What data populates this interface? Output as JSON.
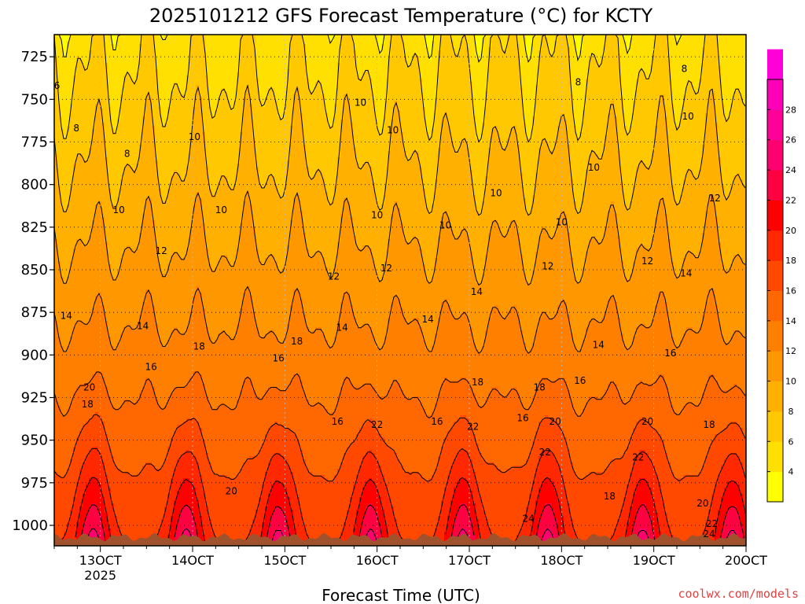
{
  "title": "2025101212 GFS Forecast Temperature (°C) for KCTY",
  "xlabel": "Forecast Time (UTC)",
  "credit": "coolwx.com/models",
  "colors": {
    "ground": "#a0522d",
    "bands": [
      "#ffff00",
      "#ffe000",
      "#ffc800",
      "#ffb000",
      "#ff9800",
      "#ff8000",
      "#ff6800",
      "#ff4800",
      "#ff2800",
      "#ff0000",
      "#ff0040",
      "#ff0070",
      "#ff0098",
      "#ff00b8",
      "#ff00d8"
    ]
  },
  "chart_data": {
    "type": "heatmap",
    "title": "2025101212 GFS Forecast Temperature (°C) for KCTY",
    "xlabel": "Forecast Time (UTC)",
    "ylabel": "",
    "y_axis": "pressure (hPa), inverted",
    "ylim": [
      1012,
      712
    ],
    "yticks": [
      725,
      750,
      775,
      800,
      825,
      850,
      875,
      900,
      925,
      950,
      975,
      1000
    ],
    "xticks": [
      {
        "label": "13OCT",
        "sub": "2025"
      },
      {
        "label": "14OCT",
        "sub": ""
      },
      {
        "label": "15OCT",
        "sub": ""
      },
      {
        "label": "16OCT",
        "sub": ""
      },
      {
        "label": "17OCT",
        "sub": ""
      },
      {
        "label": "18OCT",
        "sub": ""
      },
      {
        "label": "19OCT",
        "sub": ""
      },
      {
        "label": "20OCT",
        "sub": ""
      }
    ],
    "xlim_days": [
      12.5,
      20.0
    ],
    "colorbar": {
      "levels": [
        4,
        6,
        8,
        10,
        12,
        14,
        16,
        18,
        20,
        22,
        24,
        26,
        28
      ],
      "min": 2,
      "max": 30
    },
    "contour_labels": [
      {
        "text": "6",
        "day": 12.53,
        "p": 742
      },
      {
        "text": "8",
        "day": 12.74,
        "p": 767
      },
      {
        "text": "8",
        "day": 13.29,
        "p": 782
      },
      {
        "text": "10",
        "day": 13.2,
        "p": 815
      },
      {
        "text": "10",
        "day": 14.02,
        "p": 772
      },
      {
        "text": "10",
        "day": 14.31,
        "p": 815
      },
      {
        "text": "10",
        "day": 15.82,
        "p": 752
      },
      {
        "text": "10",
        "day": 16.17,
        "p": 768
      },
      {
        "text": "10",
        "day": 16.0,
        "p": 818
      },
      {
        "text": "10",
        "day": 17.29,
        "p": 805
      },
      {
        "text": "10",
        "day": 16.74,
        "p": 824
      },
      {
        "text": "10",
        "day": 18.0,
        "p": 822
      },
      {
        "text": "10",
        "day": 18.35,
        "p": 790
      },
      {
        "text": "10",
        "day": 19.37,
        "p": 760
      },
      {
        "text": "8",
        "day": 18.18,
        "p": 740
      },
      {
        "text": "8",
        "day": 19.33,
        "p": 732
      },
      {
        "text": "12",
        "day": 13.66,
        "p": 839
      },
      {
        "text": "12",
        "day": 15.53,
        "p": 854
      },
      {
        "text": "12",
        "day": 16.1,
        "p": 849
      },
      {
        "text": "12",
        "day": 17.85,
        "p": 848
      },
      {
        "text": "12",
        "day": 18.93,
        "p": 845
      },
      {
        "text": "12",
        "day": 19.66,
        "p": 808
      },
      {
        "text": "14",
        "day": 12.63,
        "p": 877
      },
      {
        "text": "14",
        "day": 13.46,
        "p": 883
      },
      {
        "text": "14",
        "day": 15.62,
        "p": 884
      },
      {
        "text": "14",
        "day": 16.55,
        "p": 879
      },
      {
        "text": "14",
        "day": 17.08,
        "p": 863
      },
      {
        "text": "14",
        "day": 18.4,
        "p": 894
      },
      {
        "text": "14",
        "day": 19.35,
        "p": 852
      },
      {
        "text": "16",
        "day": 13.55,
        "p": 907
      },
      {
        "text": "16",
        "day": 14.93,
        "p": 902
      },
      {
        "text": "16",
        "day": 15.57,
        "p": 939
      },
      {
        "text": "16",
        "day": 16.65,
        "p": 939
      },
      {
        "text": "16",
        "day": 17.58,
        "p": 937
      },
      {
        "text": "16",
        "day": 18.2,
        "p": 915
      },
      {
        "text": "16",
        "day": 19.18,
        "p": 899
      },
      {
        "text": "18",
        "day": 12.86,
        "p": 929
      },
      {
        "text": "18",
        "day": 14.07,
        "p": 895
      },
      {
        "text": "18",
        "day": 15.13,
        "p": 892
      },
      {
        "text": "18",
        "day": 17.09,
        "p": 916
      },
      {
        "text": "18",
        "day": 17.76,
        "p": 919
      },
      {
        "text": "18",
        "day": 18.52,
        "p": 983
      },
      {
        "text": "18",
        "day": 19.6,
        "p": 941
      },
      {
        "text": "20",
        "day": 12.88,
        "p": 919
      },
      {
        "text": "20",
        "day": 14.42,
        "p": 980
      },
      {
        "text": "20",
        "day": 17.93,
        "p": 939
      },
      {
        "text": "20",
        "day": 18.93,
        "p": 939
      },
      {
        "text": "20",
        "day": 19.53,
        "p": 987
      },
      {
        "text": "22",
        "day": 16.0,
        "p": 941
      },
      {
        "text": "22",
        "day": 17.04,
        "p": 942
      },
      {
        "text": "22",
        "day": 17.82,
        "p": 957
      },
      {
        "text": "22",
        "day": 18.83,
        "p": 960
      },
      {
        "text": "22",
        "day": 19.63,
        "p": 999
      },
      {
        "text": "24",
        "day": 17.64,
        "p": 996
      },
      {
        "text": "24",
        "day": 19.6,
        "p": 1005
      }
    ]
  }
}
